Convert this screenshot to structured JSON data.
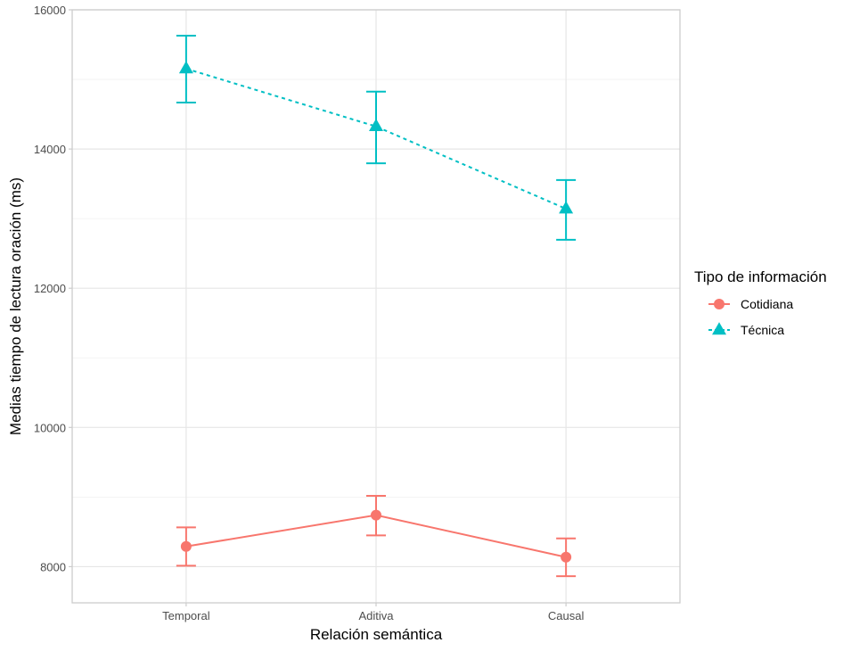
{
  "chart_data": {
    "type": "line",
    "title": "",
    "xlabel": "Relación semántica",
    "ylabel": "Medias tiempo de lectura oración (ms)",
    "categories": [
      "Temporal",
      "Aditiva",
      "Causal"
    ],
    "ylim": [
      7480,
      16000
    ],
    "yticks": [
      8000,
      10000,
      12000,
      14000,
      16000
    ],
    "yticks_labels": [
      "8000",
      "10000",
      "12000",
      "14000",
      "16000"
    ],
    "grid": true,
    "legend": {
      "title": "Tipo de información",
      "position": "right"
    },
    "series": [
      {
        "name": "Cotidiana",
        "color": "#F8766D",
        "marker": "circle",
        "linestyle": "solid",
        "values": [
          8290,
          8740,
          8137
        ],
        "error_lower": [
          8013,
          8449,
          7863
        ],
        "error_upper": [
          8564,
          9017,
          8406
        ]
      },
      {
        "name": "Técnica",
        "color": "#00BFC4",
        "marker": "triangle",
        "linestyle": "dashed",
        "values": [
          15154,
          14324,
          13141
        ],
        "error_lower": [
          14667,
          13795,
          12696
        ],
        "error_upper": [
          15628,
          14824,
          13555
        ]
      }
    ]
  }
}
